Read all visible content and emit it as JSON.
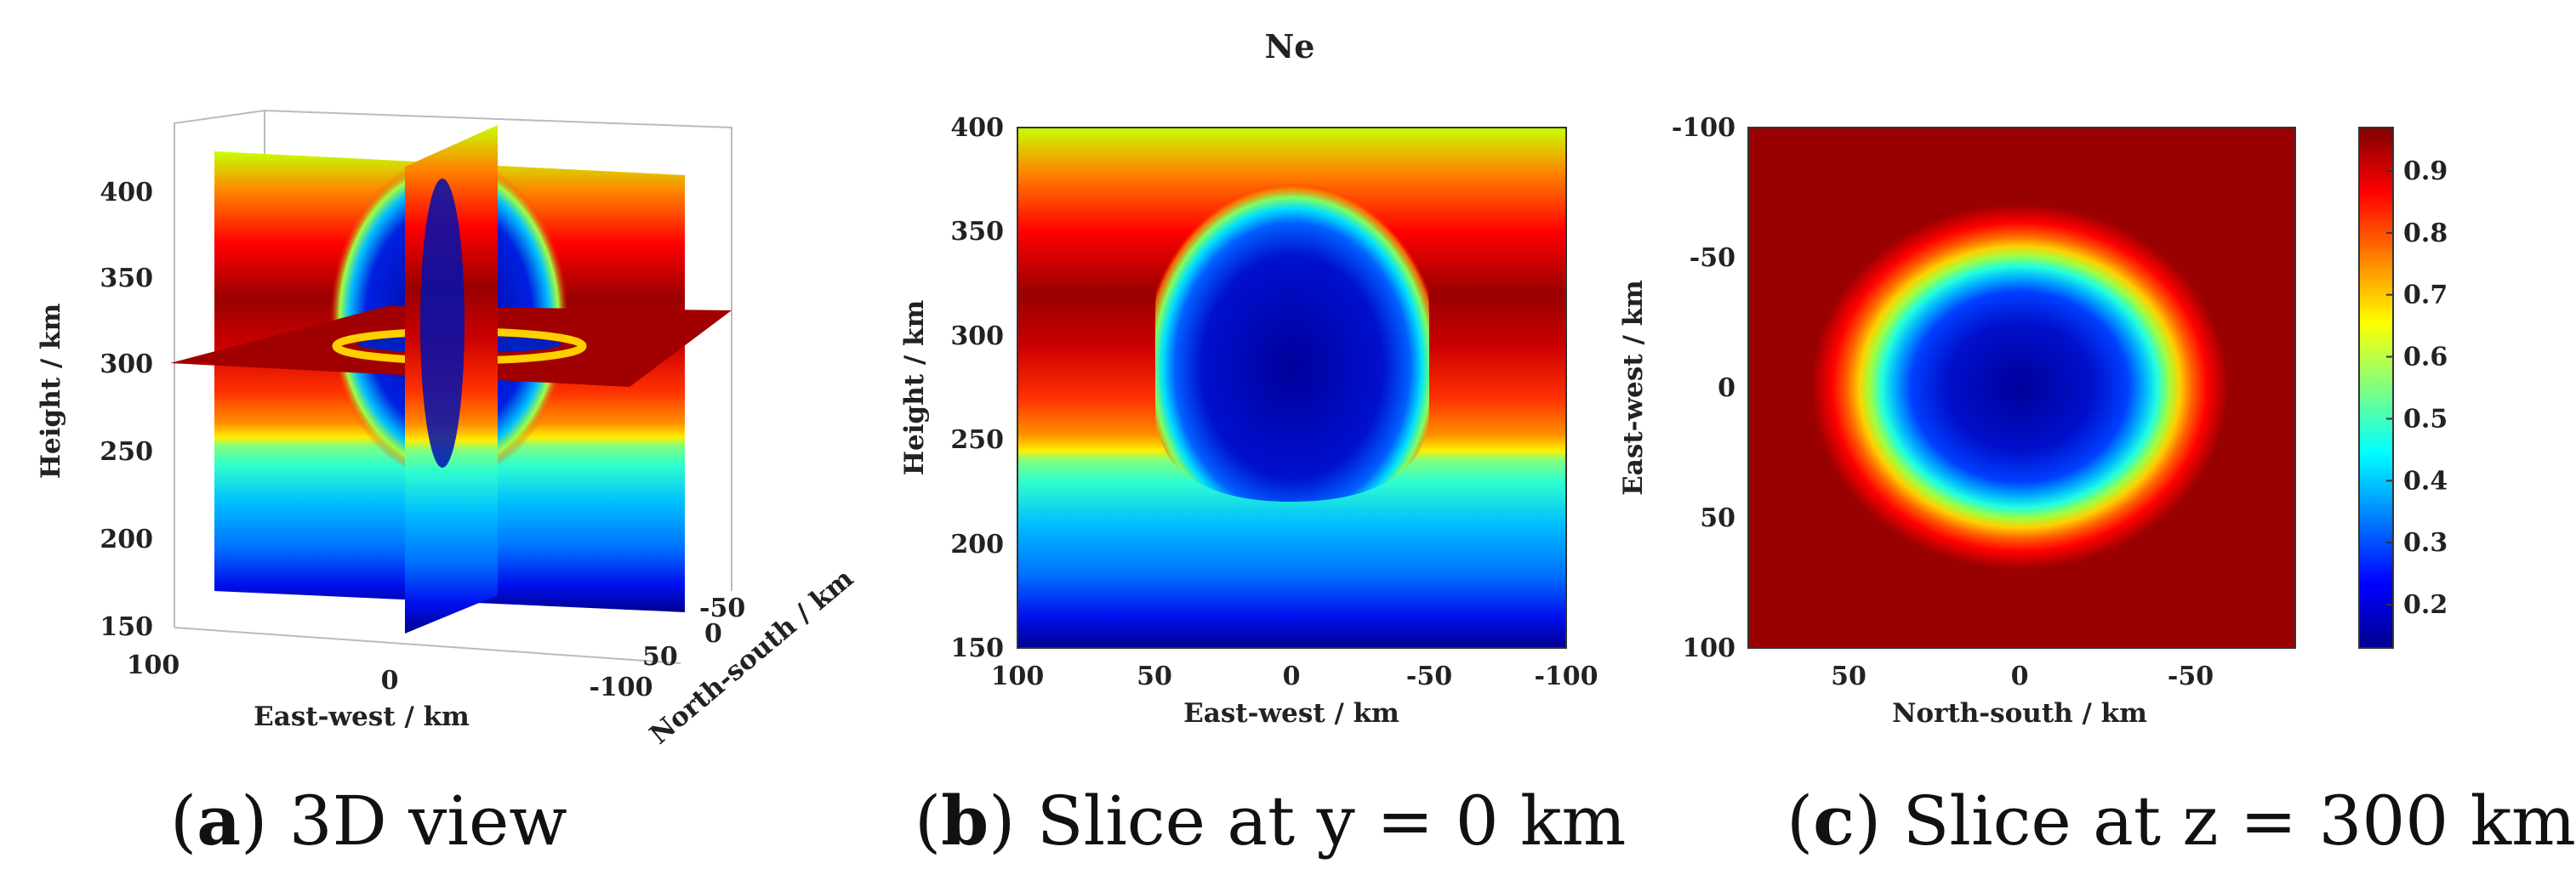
{
  "figure_title": "Ne",
  "colors": {
    "jet_stops": [
      "#00008f",
      "#0000ff",
      "#0080ff",
      "#00ffff",
      "#80ff80",
      "#ffff00",
      "#ff8000",
      "#ff0000",
      "#800000"
    ]
  },
  "captions": [
    {
      "letter": "a",
      "text": " 3D view"
    },
    {
      "letter": "b",
      "text": " Slice at y = 0 km"
    },
    {
      "letter": "c",
      "text": " Slice at z = 300 km"
    }
  ],
  "chart_data": [
    {
      "type": "heatmap",
      "view": "3d",
      "title": "",
      "xlabel": "East-west / km",
      "ylabel": "North-south / km",
      "zlabel": "Height / km",
      "x_ticks": [
        "100",
        "0",
        "-100"
      ],
      "y_ticks": [
        "-50",
        "0",
        "50"
      ],
      "z_ticks": [
        "150",
        "200",
        "250",
        "300",
        "350",
        "400"
      ],
      "xlim": [
        100,
        -100
      ],
      "ylim": [
        -50,
        50
      ],
      "zlim": [
        150,
        400
      ],
      "slices": [
        "x = 0 km",
        "y = 0 km",
        "z = 300 km"
      ]
    },
    {
      "type": "heatmap",
      "title": "",
      "xlabel": "East-west / km",
      "ylabel": "Height / km",
      "x_ticks": [
        "100",
        "50",
        "0",
        "-50",
        "-100"
      ],
      "y_ticks": [
        "150",
        "200",
        "250",
        "300",
        "350",
        "400"
      ],
      "xlim": [
        100,
        -100
      ],
      "ylim": [
        150,
        400
      ],
      "depletion": {
        "center_x": 0,
        "half_width_km": 40,
        "bottom_km": 230,
        "top_km": 375
      }
    },
    {
      "type": "heatmap",
      "title": "",
      "xlabel": "North-south / km",
      "ylabel": "East-west / km",
      "x_ticks": [
        "50",
        "0",
        "-50"
      ],
      "y_ticks": [
        "-100",
        "-50",
        "0",
        "50",
        "100"
      ],
      "xlim": [
        80,
        -80
      ],
      "ylim": [
        -100,
        100
      ],
      "depletion": {
        "center_x": 0,
        "center_y": 0,
        "radius_x_km": 40,
        "radius_y_km": 35
      }
    }
  ],
  "colorbar": {
    "ticks": [
      "0.2",
      "0.3",
      "0.4",
      "0.5",
      "0.6",
      "0.7",
      "0.8",
      "0.9"
    ],
    "range": [
      0.13,
      0.97
    ]
  }
}
